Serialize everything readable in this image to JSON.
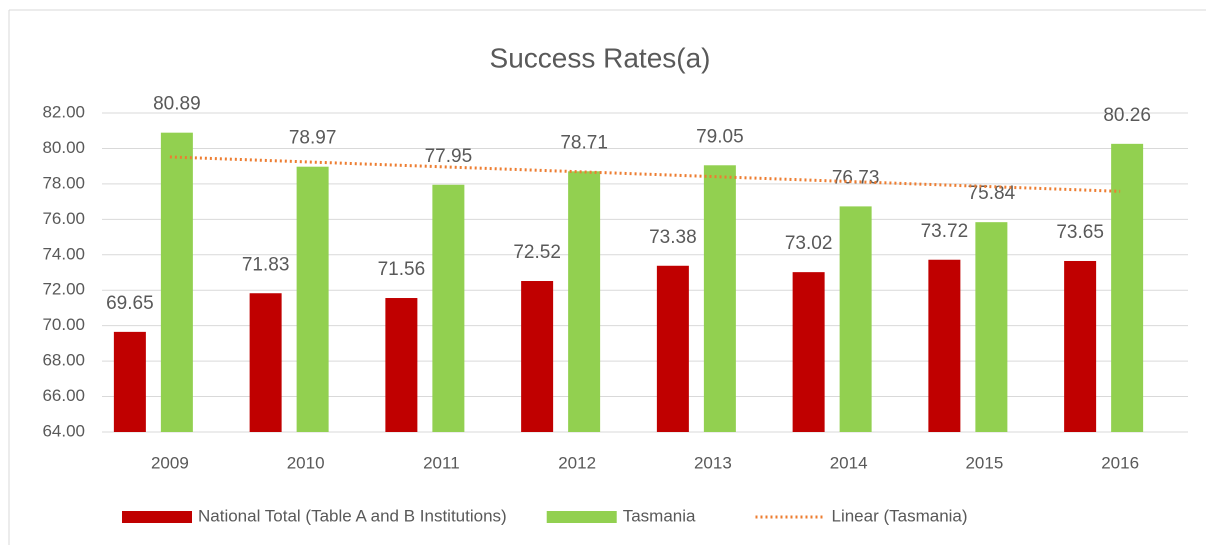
{
  "chart_data": {
    "type": "bar",
    "title": "Success Rates(a)",
    "categories": [
      "2009",
      "2010",
      "2011",
      "2012",
      "2013",
      "2014",
      "2015",
      "2016"
    ],
    "series": [
      {
        "name": "National Total (Table A and B Institutions)",
        "color": "#c00000",
        "values": [
          69.65,
          71.83,
          71.56,
          72.52,
          73.38,
          73.02,
          73.72,
          73.65
        ]
      },
      {
        "name": "Tasmania",
        "color": "#92d050",
        "values": [
          80.89,
          78.97,
          77.95,
          78.71,
          79.05,
          76.73,
          75.84,
          80.26
        ]
      }
    ],
    "trendline": {
      "name": "Linear (Tasmania)",
      "color": "#ed7d31",
      "values": [
        79.52,
        77.58
      ]
    },
    "ylim": [
      64,
      82
    ],
    "yticks": [
      {
        "value": 64,
        "label": "64.00"
      },
      {
        "value": 66,
        "label": "66.00"
      },
      {
        "value": 68,
        "label": "68.00"
      },
      {
        "value": 70,
        "label": "70.00"
      },
      {
        "value": 72,
        "label": "72.00"
      },
      {
        "value": 74,
        "label": "74.00"
      },
      {
        "value": 76,
        "label": "76.00"
      },
      {
        "value": 78,
        "label": "78.00"
      },
      {
        "value": 80,
        "label": "80.00"
      },
      {
        "value": 82,
        "label": "82.00"
      }
    ],
    "grid": true
  }
}
